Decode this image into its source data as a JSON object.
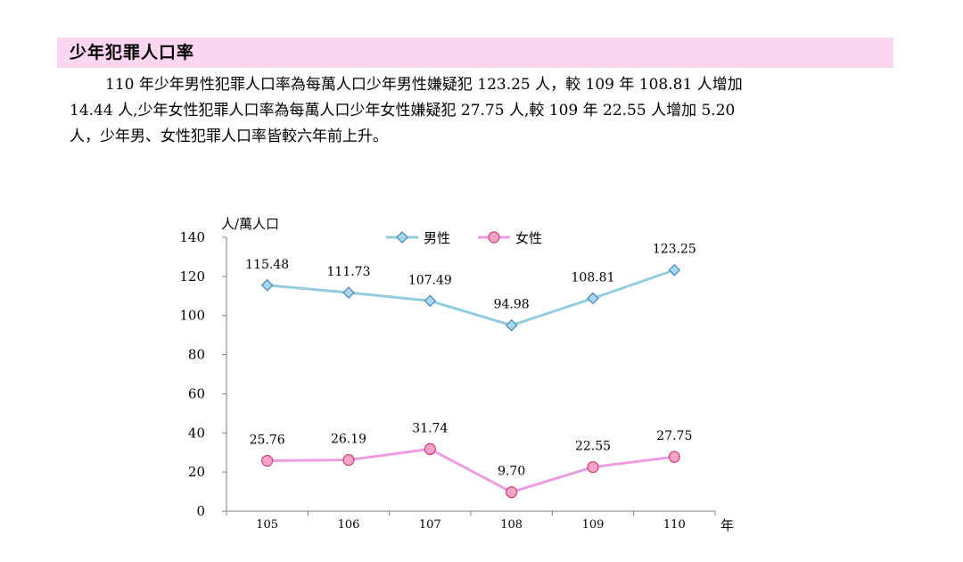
{
  "section": {
    "title": "少年犯罪人口率",
    "paragraph_lines": [
      "110 年少年男性犯罪人口率為每萬人口少年男性嫌疑犯 123.25 人，較 109 年 108.81 人增加",
      "14.44 人,少年女性犯罪人口率為每萬人口少年女性嫌疑犯 27.75 人,較 109 年 22.55 人增加 5.20",
      "人，少年男、女性犯罪人口率皆較六年前上升。"
    ]
  },
  "chart_data": {
    "type": "line",
    "y_unit_label": "人/萬人口",
    "x_unit_label": "年",
    "categories": [
      "105",
      "106",
      "107",
      "108",
      "109",
      "110"
    ],
    "ylim": [
      0,
      140
    ],
    "yticks": [
      0,
      20,
      40,
      60,
      80,
      100,
      120,
      140
    ],
    "grid": false,
    "legend_position": "top",
    "series": [
      {
        "name": "男性",
        "values": [
          115.48,
          111.73,
          107.49,
          94.98,
          108.81,
          123.25
        ],
        "labels": [
          "115.48",
          "111.73",
          "107.49",
          "94.98",
          "108.81",
          "123.25"
        ],
        "line_color": "#93cddd",
        "marker": "diamond",
        "marker_fill": "#a9d7f0",
        "marker_stroke": "#4a86b4"
      },
      {
        "name": "女性",
        "values": [
          25.76,
          26.19,
          31.74,
          9.7,
          22.55,
          27.75
        ],
        "labels": [
          "25.76",
          "26.19",
          "31.74",
          "9.70",
          "22.55",
          "27.75"
        ],
        "line_color": "#ee9be4",
        "marker": "circle",
        "marker_fill": "#f6a3c8",
        "marker_stroke": "#c8407a"
      }
    ]
  }
}
